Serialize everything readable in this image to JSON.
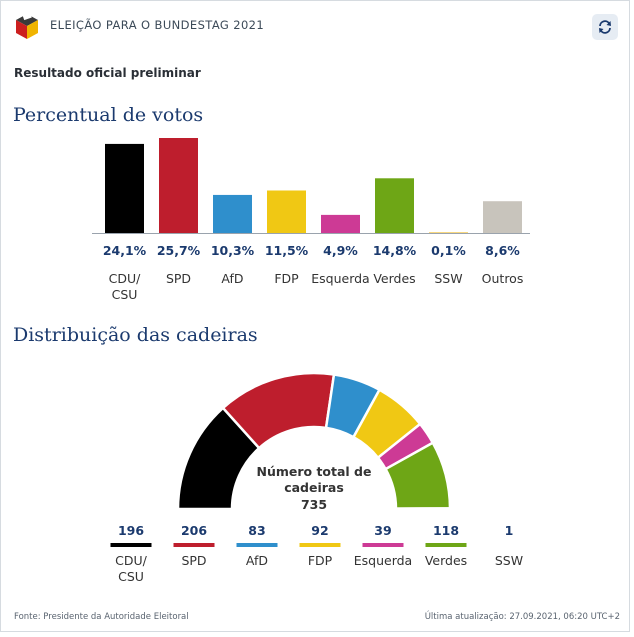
{
  "header": {
    "title": "ELEIÇÃO PARA O BUNDESTAG 2021",
    "logo_icon": "ballot-box-icon",
    "refresh_icon": "refresh-icon"
  },
  "subtitle": "Resultado oficial preliminar",
  "votes_title": "Percentual de votos",
  "seats_title": "Distribuição das cadeiras",
  "footer": {
    "source": "Fonte: Presidente da Autoridade Eleitoral",
    "updated": "Última atualização: 27.09.2021, 06:20 UTC+2"
  },
  "chart_data": [
    {
      "type": "bar",
      "categories": [
        "CDU/ CSU",
        "SPD",
        "AfD",
        "FDP",
        "Esquerda",
        "Verdes",
        "SSW",
        "Outros"
      ],
      "values": [
        24.1,
        25.7,
        10.3,
        11.5,
        4.9,
        14.8,
        0.1,
        8.6
      ],
      "value_labels": [
        "24,1%",
        "25,7%",
        "10,3%",
        "11,5%",
        "4,9%",
        "14,8%",
        "0,1%",
        "8,6%"
      ],
      "colors": [
        "#000000",
        "#be1e2d",
        "#2f8fcc",
        "#f0c814",
        "#cd3a95",
        "#6ea616",
        "#f0b000",
        "#c8c4bc"
      ],
      "title": "Percentual de votos"
    },
    {
      "type": "pie",
      "shape": "semicircle",
      "categories": [
        "CDU/ CSU",
        "SPD",
        "AfD",
        "FDP",
        "Esquerda",
        "Verdes",
        "SSW"
      ],
      "values": [
        196,
        206,
        83,
        92,
        39,
        118,
        1
      ],
      "colors": [
        "#000000",
        "#be1e2d",
        "#2f8fcc",
        "#f0c814",
        "#cd3a95",
        "#6ea616",
        "#1b3a6e"
      ],
      "center_label": "Número total de cadeiras",
      "total": 735,
      "title": "Distribuição das cadeiras"
    }
  ]
}
